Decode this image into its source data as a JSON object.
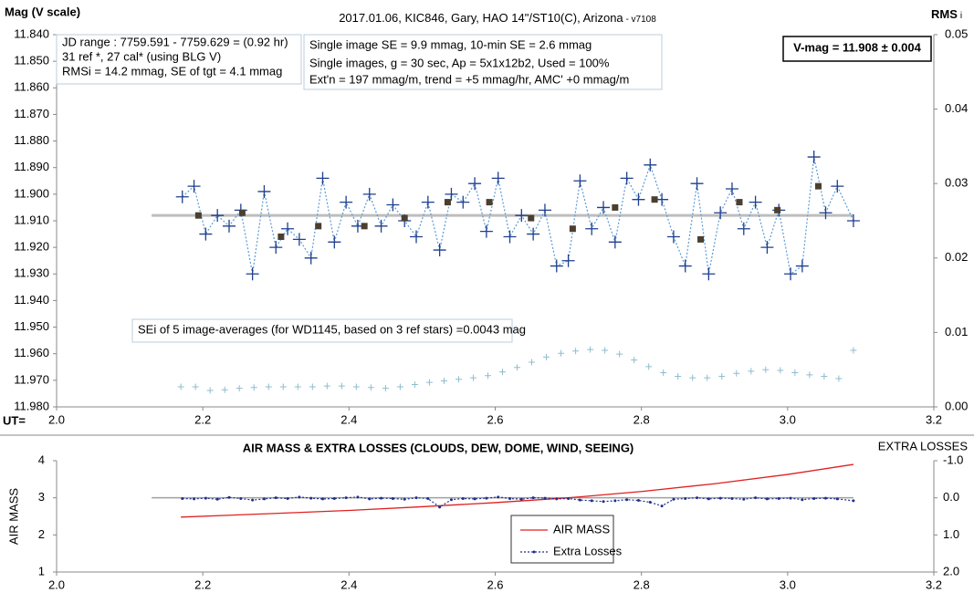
{
  "chart_data": [
    {
      "type": "line",
      "title": "2017.01.06,  KIC846,  Gary,  HAO  14\"/ST10(C),  Arizona",
      "title_version": " - v7108",
      "ylabel": "Mag (V scale)",
      "y2label": "RMS",
      "y2label_sub": "i",
      "xlabel": "UT=",
      "xlim": [
        2.0,
        3.2
      ],
      "xticks": [
        {
          "value": 2.0,
          "label": "2.0"
        },
        {
          "value": 2.2,
          "label": "2.2"
        },
        {
          "value": 2.4,
          "label": "2.4"
        },
        {
          "value": 2.6,
          "label": "2.6"
        },
        {
          "value": 2.8,
          "label": "2.8"
        },
        {
          "value": 3.0,
          "label": "3.0"
        },
        {
          "value": 3.2,
          "label": "3.2"
        }
      ],
      "ylim": [
        11.84,
        11.98
      ],
      "y_inverted": true,
      "yticks": [
        {
          "value": 11.84,
          "label": "11.840"
        },
        {
          "value": 11.85,
          "label": "11.850"
        },
        {
          "value": 11.86,
          "label": "11.860"
        },
        {
          "value": 11.87,
          "label": "11.870"
        },
        {
          "value": 11.88,
          "label": "11.880"
        },
        {
          "value": 11.89,
          "label": "11.890"
        },
        {
          "value": 11.9,
          "label": "11.900"
        },
        {
          "value": 11.91,
          "label": "11.910"
        },
        {
          "value": 11.92,
          "label": "11.920"
        },
        {
          "value": 11.93,
          "label": "11.930"
        },
        {
          "value": 11.94,
          "label": "11.940"
        },
        {
          "value": 11.95,
          "label": "11.950"
        },
        {
          "value": 11.96,
          "label": "11.960"
        },
        {
          "value": 11.97,
          "label": "11.970"
        },
        {
          "value": 11.98,
          "label": "11.980"
        }
      ],
      "y2lim": [
        0,
        0.05
      ],
      "y2ticks": [
        {
          "value": 0,
          "label": "0.00"
        },
        {
          "value": 0.01,
          "label": "0.01"
        },
        {
          "value": 0.02,
          "label": "0.02"
        },
        {
          "value": 0.03,
          "label": "0.03"
        },
        {
          "value": 0.04,
          "label": "0.04"
        },
        {
          "value": 0.05,
          "label": "0.05"
        }
      ],
      "mean_line": {
        "x": [
          2.13,
          3.09
        ],
        "value": 11.908,
        "color": "#bdbdbd"
      },
      "series": [
        {
          "color": "#1f3f8f",
          "line_color": "#5b9bd5",
          "line": "dotted",
          "marker": "plus",
          "x": [
            2.172,
            2.188,
            2.204,
            2.22,
            2.236,
            2.252,
            2.268,
            2.284,
            2.3,
            2.316,
            2.332,
            2.348,
            2.364,
            2.38,
            2.396,
            2.412,
            2.428,
            2.444,
            2.46,
            2.476,
            2.492,
            2.508,
            2.524,
            2.54,
            2.556,
            2.572,
            2.588,
            2.604,
            2.62,
            2.636,
            2.652,
            2.668,
            2.684,
            2.7,
            2.716,
            2.732,
            2.748,
            2.764,
            2.78,
            2.796,
            2.812,
            2.828,
            2.844,
            2.86,
            2.876,
            2.892,
            2.908,
            2.924,
            2.94,
            2.956,
            2.972,
            2.988,
            3.004,
            3.02,
            3.036,
            3.052,
            3.068,
            3.09
          ],
          "values": [
            11.901,
            11.897,
            11.915,
            11.908,
            11.912,
            11.906,
            11.93,
            11.899,
            11.92,
            11.913,
            11.917,
            11.924,
            11.894,
            11.918,
            11.903,
            11.912,
            11.9,
            11.912,
            11.904,
            11.91,
            11.916,
            11.903,
            11.921,
            11.9,
            11.903,
            11.896,
            11.914,
            11.894,
            11.916,
            11.908,
            11.915,
            11.906,
            11.927,
            11.925,
            11.895,
            11.913,
            11.905,
            11.918,
            11.894,
            11.902,
            11.889,
            11.902,
            11.916,
            11.927,
            11.896,
            11.93,
            11.907,
            11.898,
            11.913,
            11.903,
            11.92,
            11.906,
            11.93,
            11.927,
            11.886,
            11.907,
            11.897,
            11.91
          ]
        },
        {
          "color": "#4a3f30",
          "line": "none",
          "marker": "square",
          "x": [
            2.194,
            2.254,
            2.307,
            2.358,
            2.421,
            2.476,
            2.535,
            2.592,
            2.649,
            2.706,
            2.764,
            2.818,
            2.881,
            2.934,
            2.986,
            3.042
          ],
          "values": [
            11.908,
            11.907,
            11.916,
            11.912,
            11.912,
            11.909,
            11.903,
            11.903,
            11.909,
            11.913,
            11.905,
            11.902,
            11.917,
            11.903,
            11.906,
            11.897
          ]
        },
        {
          "color": "#8fbccf",
          "line": "none",
          "marker": "small-plus",
          "axis": "y2",
          "x": [
            2.17,
            2.19,
            2.21,
            2.23,
            2.25,
            2.27,
            2.29,
            2.31,
            2.33,
            2.35,
            2.37,
            2.39,
            2.41,
            2.43,
            2.45,
            2.47,
            2.49,
            2.51,
            2.53,
            2.55,
            2.57,
            2.59,
            2.61,
            2.63,
            2.65,
            2.67,
            2.69,
            2.71,
            2.73,
            2.75,
            2.77,
            2.79,
            2.81,
            2.83,
            2.85,
            2.87,
            2.89,
            2.91,
            2.93,
            2.95,
            2.97,
            2.99,
            3.01,
            3.03,
            3.05,
            3.07,
            3.09
          ],
          "values": [
            0.0027,
            0.0027,
            0.0022,
            0.0023,
            0.0025,
            0.0026,
            0.0027,
            0.0027,
            0.0027,
            0.0027,
            0.0028,
            0.0028,
            0.0027,
            0.0026,
            0.0025,
            0.0027,
            0.003,
            0.0033,
            0.0035,
            0.0037,
            0.0039,
            0.0042,
            0.0047,
            0.0053,
            0.006,
            0.0067,
            0.0072,
            0.0075,
            0.0077,
            0.0076,
            0.0071,
            0.0063,
            0.0054,
            0.0046,
            0.0041,
            0.0039,
            0.0039,
            0.0041,
            0.0045,
            0.0048,
            0.005,
            0.0049,
            0.0046,
            0.0043,
            0.0041,
            0.0038,
            0.0076
          ]
        }
      ],
      "annotations": [
        {
          "lines": [
            "JD range  : 7759.591 - 7759.629  = (0.92 hr)",
            "31 ref *, 27 cal* (using BLG V)",
            "RMSi = 14.2 mmag, SE of tgt = 4.1 mmag"
          ]
        },
        {
          "lines": [
            "Single image SE = 9.9 mmag, 10-min SE = 2.6 mmag",
            "Single images, g = 30 sec, Ap = 5x1x12b2, Used = 100%",
            "Ext'n = 197 mmag/m, trend = +5 mmag/hr, AMC' +0 mmag/m"
          ]
        },
        {
          "lines": [
            "V-mag  = 11.908 ± 0.004"
          ]
        },
        {
          "lines": [
            "SEi of 5 image-averages (for WD1145, based on 3 ref stars) =0.0043 mag"
          ]
        }
      ]
    },
    {
      "type": "line",
      "title": "AIR MASS & EXTRA LOSSES (CLOUDS, DEW, DOME, WIND, SEEING)",
      "ylabel": "AIR MASS",
      "y2label": "EXTRA LOSSES",
      "xlim": [
        2.0,
        3.2
      ],
      "xticks": [
        {
          "value": 2.0,
          "label": "2.0"
        },
        {
          "value": 2.2,
          "label": "2.2"
        },
        {
          "value": 2.4,
          "label": "2.4"
        },
        {
          "value": 2.6,
          "label": "2.6"
        },
        {
          "value": 2.8,
          "label": "2.8"
        },
        {
          "value": 3.0,
          "label": "3.0"
        },
        {
          "value": 3.2,
          "label": "3.2"
        }
      ],
      "ylim": [
        1,
        4
      ],
      "yticks": [
        1,
        2,
        3,
        4
      ],
      "y2lim": [
        -1,
        2
      ],
      "y2_inverted": true,
      "y2ticks": [
        {
          "value": -1,
          "label": "-1.0"
        },
        {
          "value": 0,
          "label": "0.0"
        },
        {
          "value": 1,
          "label": "1.0"
        },
        {
          "value": 2,
          "label": "2.0"
        }
      ],
      "zero_line": {
        "x": [
          2.13,
          3.09
        ],
        "value": 0,
        "axis": "y2",
        "color": "#a0a0a0"
      },
      "legend": "bottom-center",
      "series": [
        {
          "name": "AIR MASS",
          "color": "#e02020",
          "line": "solid",
          "marker": "none",
          "x": [
            2.17,
            2.3,
            2.4,
            2.5,
            2.6,
            2.7,
            2.8,
            2.9,
            3.0,
            3.09
          ],
          "values": [
            2.48,
            2.58,
            2.66,
            2.76,
            2.87,
            3.0,
            3.17,
            3.38,
            3.63,
            3.9
          ]
        },
        {
          "name": "Extra Losses",
          "color": "#1f2f8f",
          "line": "dotted",
          "marker": "dot",
          "axis": "y2",
          "x": [
            2.172,
            2.188,
            2.204,
            2.22,
            2.236,
            2.252,
            2.268,
            2.284,
            2.3,
            2.316,
            2.332,
            2.348,
            2.364,
            2.38,
            2.396,
            2.412,
            2.428,
            2.444,
            2.46,
            2.476,
            2.492,
            2.508,
            2.524,
            2.54,
            2.556,
            2.572,
            2.588,
            2.604,
            2.62,
            2.636,
            2.652,
            2.668,
            2.684,
            2.7,
            2.716,
            2.732,
            2.748,
            2.764,
            2.78,
            2.796,
            2.812,
            2.828,
            2.844,
            2.86,
            2.876,
            2.892,
            2.908,
            2.924,
            2.94,
            2.956,
            2.972,
            2.988,
            3.004,
            3.02,
            3.036,
            3.052,
            3.068,
            3.09
          ],
          "values": [
            0.02,
            0.03,
            0.01,
            0.04,
            -0.01,
            0.02,
            0.06,
            0.03,
            0,
            0.02,
            -0.02,
            0.01,
            0.03,
            0.02,
            0,
            -0.02,
            0.03,
            0.01,
            0.02,
            0.04,
            0,
            0.02,
            0.25,
            0.05,
            0.02,
            0.03,
            0.01,
            -0.02,
            0.02,
            0.04,
            0,
            0.01,
            0.03,
            0.02,
            0.06,
            0.08,
            0.1,
            0.08,
            0.05,
            0.07,
            0.12,
            0.22,
            0.04,
            0.02,
            0,
            0.03,
            0.01,
            0.02,
            0.04,
            0,
            0.03,
            0.02,
            0.01,
            0.05,
            0.02,
            0.01,
            0.03,
            0.08
          ]
        }
      ]
    }
  ]
}
